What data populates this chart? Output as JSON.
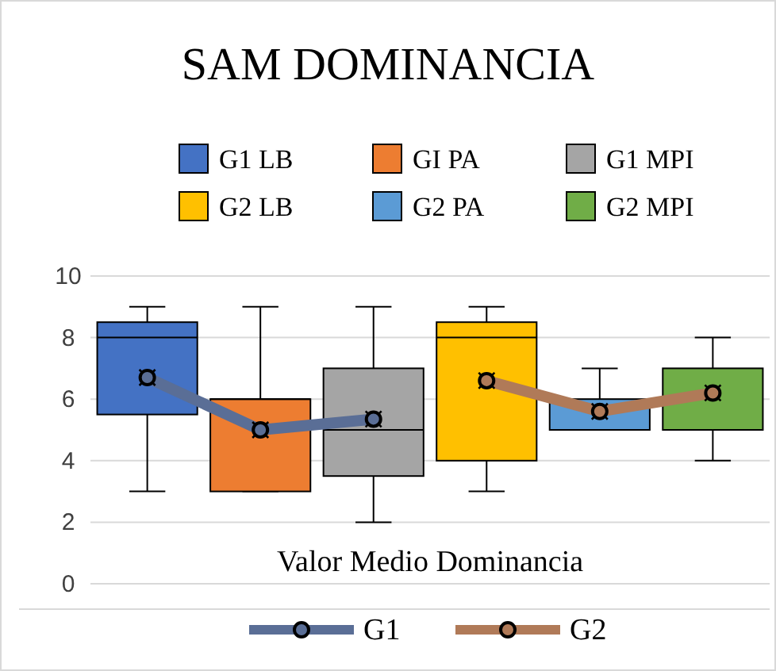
{
  "chart_data": {
    "type": "box",
    "title": "SAM DOMINANCIA",
    "xlabel": "Valor Medio Dominancia",
    "categories": [
      null,
      null,
      null,
      null,
      null,
      null
    ],
    "series": [
      {
        "name": "G1 LB",
        "color": "#4472c4",
        "boxes": [
          {
            "low": 3,
            "q1": 5.5,
            "median": 8,
            "q3": 8.5,
            "high": 9
          },
          null,
          null,
          null,
          null,
          null
        ]
      },
      {
        "name": "GI PA",
        "color": "#ed7d31",
        "boxes": [
          null,
          {
            "low": 3,
            "q1": 3,
            "median": 6,
            "q3": 6,
            "high": 9
          },
          null,
          null,
          null,
          null
        ]
      },
      {
        "name": "G1 MPI",
        "color": "#a5a5a5",
        "boxes": [
          null,
          null,
          {
            "low": 2,
            "q1": 3.5,
            "median": 5,
            "q3": 7,
            "high": 9
          },
          null,
          null,
          null
        ]
      },
      {
        "name": "G2 LB",
        "color": "#ffc000",
        "boxes": [
          null,
          null,
          null,
          {
            "low": 3,
            "q1": 4,
            "median": 8,
            "q3": 8.5,
            "high": 9
          },
          null,
          null
        ]
      },
      {
        "name": "G2 PA",
        "color": "#5b9bd5",
        "boxes": [
          null,
          null,
          null,
          null,
          {
            "low": 5,
            "q1": 5,
            "median": 5,
            "q3": 6,
            "high": 7
          },
          null
        ]
      },
      {
        "name": "G2 MPI",
        "color": "#70ad47",
        "boxes": [
          null,
          null,
          null,
          null,
          null,
          {
            "low": 4,
            "q1": 5,
            "median": 5,
            "q3": 7,
            "high": 8
          }
        ]
      },
      {
        "name": "G1",
        "type": "line",
        "color": "#5a6e96",
        "values": [
          6.7,
          5.0,
          5.35,
          null,
          null,
          null
        ]
      },
      {
        "name": "G2",
        "type": "line",
        "color": "#b07a58",
        "values": [
          null,
          null,
          null,
          6.6,
          5.6,
          6.2
        ]
      }
    ],
    "ylim": [
      0,
      10
    ],
    "yticks": [
      0,
      2,
      4,
      6,
      8,
      10
    ],
    "grid": "y",
    "legend": "top",
    "marker": "circle"
  }
}
